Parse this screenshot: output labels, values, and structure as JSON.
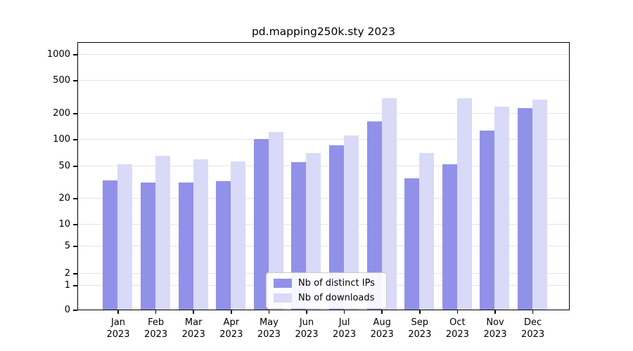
{
  "chart_data": {
    "type": "bar",
    "title": "pd.mapping250k.sty 2023",
    "categories": [
      "Jan",
      "Feb",
      "Mar",
      "Apr",
      "May",
      "Jun",
      "Jul",
      "Aug",
      "Sep",
      "Oct",
      "Nov",
      "Dec"
    ],
    "x_year_label": "2023",
    "series": [
      {
        "name": "Nb of distinct IPs",
        "color": "#9191e9",
        "values": [
          33,
          31,
          31,
          32,
          101,
          55,
          85,
          160,
          35,
          52,
          125,
          230
        ]
      },
      {
        "name": "Nb of downloads",
        "color": "#d9d9f8",
        "values": [
          52,
          65,
          59,
          56,
          120,
          70,
          110,
          300,
          70,
          300,
          240,
          290
        ]
      }
    ],
    "yscale": "symlog",
    "yticks": [
      0,
      1,
      2,
      5,
      10,
      20,
      50,
      100,
      200,
      500,
      1000
    ],
    "ylim": [
      0,
      1000
    ],
    "grid": true,
    "legend_position": "lower center"
  }
}
